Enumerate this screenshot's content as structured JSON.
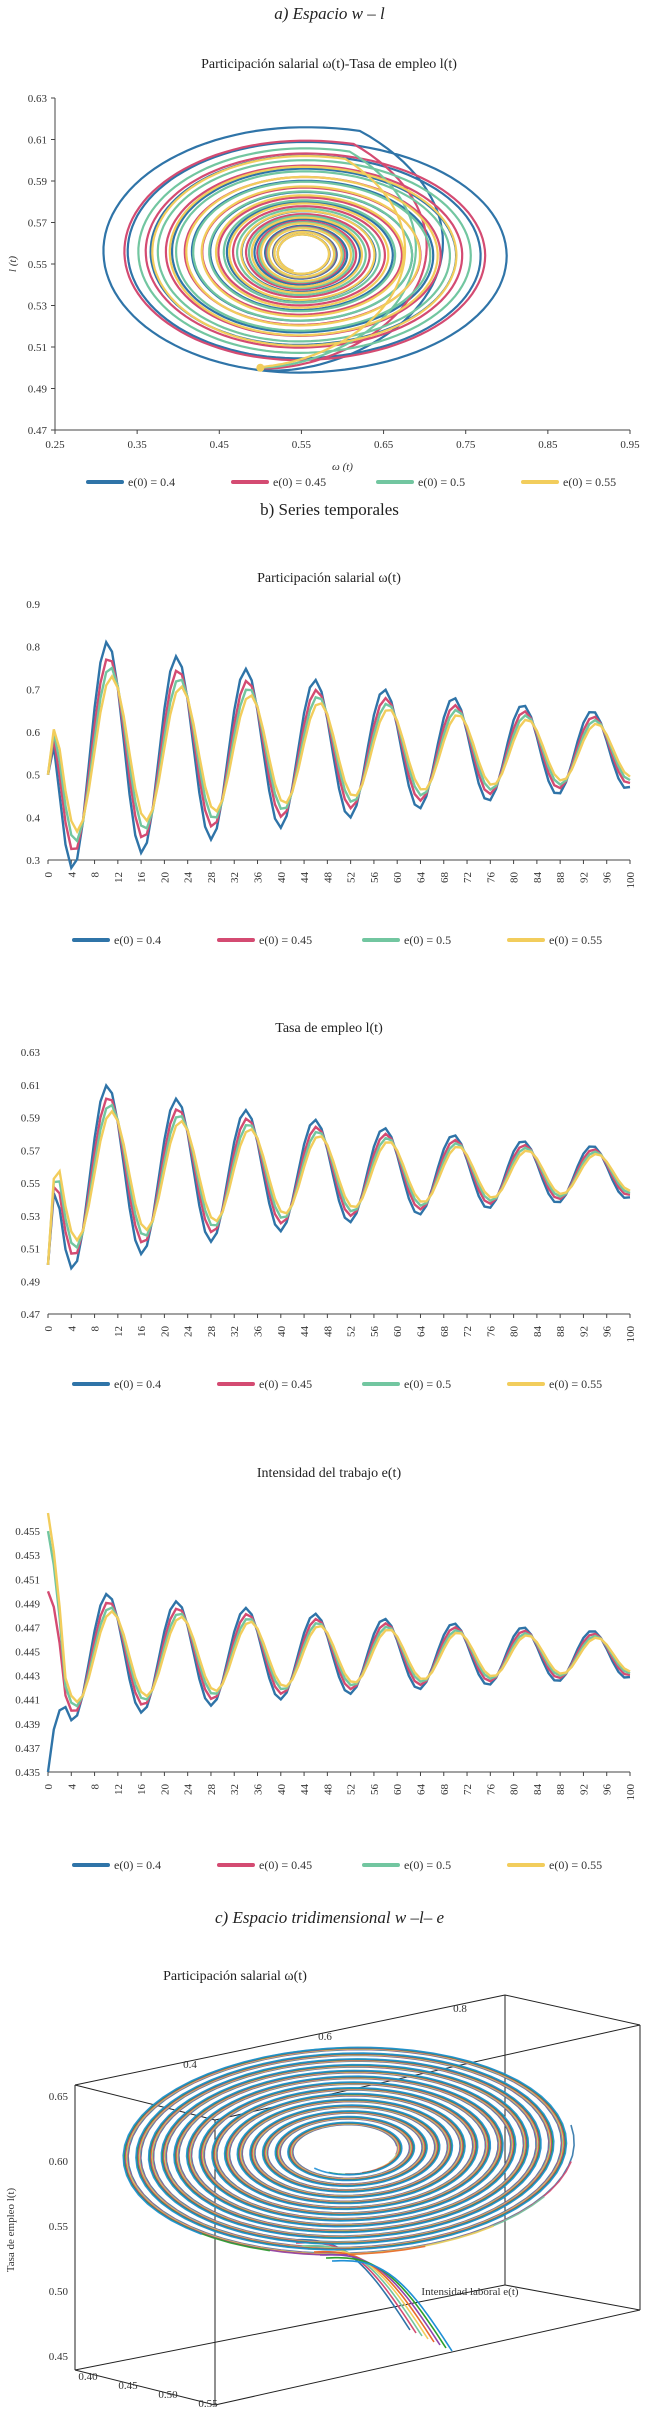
{
  "sections": {
    "a_title": "a) Espacio w – l",
    "b_title": "b) Series temporales",
    "c_title": "c) Espacio tridimensional w –l– e"
  },
  "legend_labels": [
    "e(0) = 0.4",
    "e(0) = 0.45",
    "e(0) = 0.5",
    "e(0) = 0.55"
  ],
  "colors": {
    "s1": "#2f74a8",
    "s2": "#d44b72",
    "s3": "#72c6a0",
    "s4": "#f2cd5c"
  },
  "chart_data": [
    {
      "id": "phase",
      "type": "line",
      "title": "Participación salarial  ω(t)-Tasa de empleo  l(t)",
      "xlabel": "ω (t)",
      "ylabel": "l (t)",
      "xlim": [
        0.25,
        0.95
      ],
      "ylim": [
        0.47,
        0.63
      ],
      "xticks": [
        "0.25",
        "0.35",
        "0.45",
        "0.55",
        "0.65",
        "0.75",
        "0.85",
        "0.95"
      ],
      "yticks": [
        "0.47",
        "0.49",
        "0.51",
        "0.53",
        "0.55",
        "0.57",
        "0.59",
        "0.61",
        "0.63"
      ],
      "center": [
        0.55,
        0.555
      ],
      "start": [
        0.5,
        0.5
      ],
      "series": [
        {
          "name": "e(0) = 0.4",
          "rx0": 0.28,
          "ry0": 0.065,
          "rx1": 0.03,
          "ry1": 0.009,
          "turns": 12
        },
        {
          "name": "e(0) = 0.45",
          "rx0": 0.25,
          "ry0": 0.058,
          "rx1": 0.03,
          "ry1": 0.009,
          "turns": 12
        },
        {
          "name": "e(0) = 0.5",
          "rx0": 0.23,
          "ry0": 0.054,
          "rx1": 0.03,
          "ry1": 0.009,
          "turns": 12
        },
        {
          "name": "e(0) = 0.55",
          "rx0": 0.21,
          "ry0": 0.05,
          "rx1": 0.03,
          "ry1": 0.009,
          "turns": 12
        }
      ]
    },
    {
      "id": "wage",
      "type": "line",
      "title": "Participación salarial  ω(t)",
      "ylim": [
        0.3,
        0.9
      ],
      "yticks": [
        "0.3",
        "0.4",
        "0.5",
        "0.6",
        "0.7",
        "0.8",
        "0.9"
      ],
      "xticks": [
        "0",
        "4",
        "8",
        "12",
        "16",
        "20",
        "24",
        "28",
        "32",
        "36",
        "40",
        "44",
        "48",
        "52",
        "56",
        "60",
        "64",
        "68",
        "72",
        "76",
        "80",
        "84",
        "88",
        "92",
        "96",
        "100"
      ],
      "period": 11.9,
      "series": [
        {
          "name": "e(0) = 0.4",
          "amp": 0.29,
          "decay": 0.012,
          "shift": 0.0,
          "mid": 0.555
        },
        {
          "name": "e(0) = 0.45",
          "amp": 0.25,
          "decay": 0.012,
          "shift": 0.25,
          "mid": 0.555
        },
        {
          "name": "e(0) = 0.5",
          "amp": 0.225,
          "decay": 0.012,
          "shift": 0.5,
          "mid": 0.555
        },
        {
          "name": "e(0) = 0.55",
          "amp": 0.2,
          "decay": 0.012,
          "shift": 0.75,
          "mid": 0.555
        }
      ]
    },
    {
      "id": "employment",
      "type": "line",
      "title": "Tasa de empleo l(t)",
      "ylim": [
        0.47,
        0.63
      ],
      "yticks": [
        "0.47",
        "0.49",
        "0.51",
        "0.53",
        "0.55",
        "0.57",
        "0.59",
        "0.61",
        "0.63"
      ],
      "xticks": [
        "0",
        "4",
        "8",
        "12",
        "16",
        "20",
        "24",
        "28",
        "32",
        "36",
        "40",
        "44",
        "48",
        "52",
        "56",
        "60",
        "64",
        "68",
        "72",
        "76",
        "80",
        "84",
        "88",
        "92",
        "96",
        "100"
      ],
      "period": 11.9,
      "series": [
        {
          "name": "e(0) = 0.4",
          "amp": 0.062,
          "decay": 0.014,
          "shift": 0.0,
          "mid": 0.556
        },
        {
          "name": "e(0) = 0.45",
          "amp": 0.054,
          "decay": 0.014,
          "shift": 0.25,
          "mid": 0.556
        },
        {
          "name": "e(0) = 0.5",
          "amp": 0.049,
          "decay": 0.014,
          "shift": 0.5,
          "mid": 0.556
        },
        {
          "name": "e(0) = 0.55",
          "amp": 0.044,
          "decay": 0.014,
          "shift": 0.75,
          "mid": 0.556
        }
      ]
    },
    {
      "id": "intensity",
      "type": "line",
      "title": "Intensidad del trabajo  e(t)",
      "ylim": [
        0.435,
        0.457
      ],
      "yticks": [
        "0.435",
        "0.437",
        "0.439",
        "0.441",
        "0.443",
        "0.445",
        "0.447",
        "0.449",
        "0.451",
        "0.453",
        "0.455"
      ],
      "xticks": [
        "0",
        "4",
        "8",
        "12",
        "16",
        "20",
        "24",
        "28",
        "32",
        "36",
        "40",
        "44",
        "48",
        "52",
        "56",
        "60",
        "64",
        "68",
        "72",
        "76",
        "80",
        "84",
        "88",
        "92",
        "96",
        "100"
      ],
      "period": 11.9,
      "series": [
        {
          "name": "e(0) = 0.4",
          "amp": 0.0057,
          "decay": 0.011,
          "shift": 0.0,
          "mid": 0.4447,
          "start": 0.435
        },
        {
          "name": "e(0) = 0.45",
          "amp": 0.005,
          "decay": 0.011,
          "shift": 0.25,
          "mid": 0.4447,
          "start": 0.45
        },
        {
          "name": "e(0) = 0.5",
          "amp": 0.0045,
          "decay": 0.011,
          "shift": 0.5,
          "mid": 0.4447,
          "start": 0.455
        },
        {
          "name": "e(0) = 0.55",
          "amp": 0.0041,
          "decay": 0.011,
          "shift": 0.75,
          "mid": 0.4447,
          "start": 0.4565
        }
      ]
    },
    {
      "id": "three_d",
      "type": "line",
      "title": "Participación salarial  ω(t)",
      "ylabel": "Tasa de empleo l(t)",
      "zlabel": "Intensidad laboral e(t)",
      "top_ticks": [
        "0.4",
        "0.6",
        "0.8"
      ],
      "left_ticks": [
        "0.65",
        "0.60",
        "0.55",
        "0.50",
        "0.45"
      ],
      "bottom_ticks": [
        "0.40",
        "0.45",
        "0.50",
        "0.55"
      ],
      "palette": [
        "#2f74a8",
        "#d44b72",
        "#72c6a0",
        "#f2cd5c",
        "#e86a2c",
        "#8e44ad",
        "#2ca02c",
        "#1f8fd6"
      ]
    }
  ]
}
